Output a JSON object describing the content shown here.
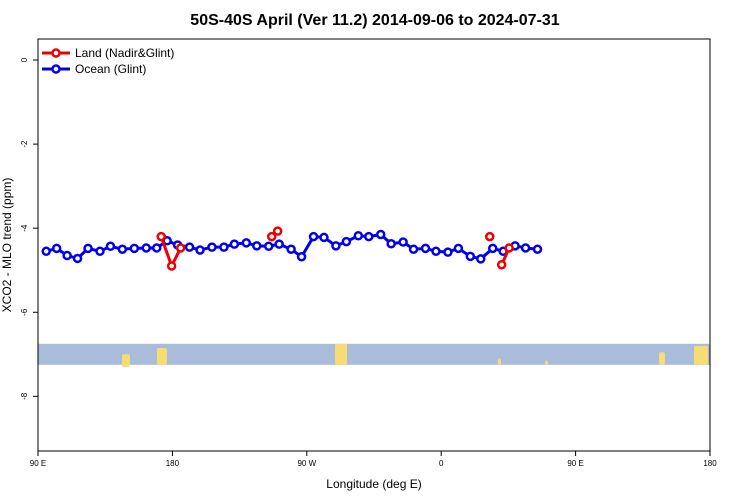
{
  "chart_data": {
    "type": "line",
    "title": "50S-40S April (Ver 11.2)   2014-09-06 to 2024-07-31",
    "xlabel": "Longitude (deg E)",
    "ylabel": "XCO2 - MLO trend (ppm)",
    "xlim": [
      90,
      450
    ],
    "ylim": [
      -9.3,
      0.5
    ],
    "x_ticks": [
      {
        "value": 90,
        "label": "90 E"
      },
      {
        "value": 180,
        "label": "180"
      },
      {
        "value": 270,
        "label": "90 W"
      },
      {
        "value": 360,
        "label": "0"
      },
      {
        "value": 450,
        "label": "90 E"
      },
      {
        "value": 540,
        "label": "180"
      }
    ],
    "y_ticks": [
      {
        "value": 0,
        "label": "0"
      },
      {
        "value": -2,
        "label": "-2"
      },
      {
        "value": -4,
        "label": "-4"
      },
      {
        "value": -6,
        "label": "-6"
      },
      {
        "value": -8,
        "label": "-8"
      }
    ],
    "grid": false,
    "legend_position": "top-left",
    "map_band": {
      "y_range": [
        -6.75,
        -7.25
      ],
      "ocean_color": "#a9bcd9",
      "land_color": "#f7dc74"
    },
    "series": [
      {
        "name": "Land (Nadir&Glint)",
        "color": "#ee0000",
        "x": [
          167.5,
          172.5,
          177.5,
          182.5,
          187.5,
          237.5,
          242.5,
          247.5,
          252.5,
          397.5,
          402.5,
          407.5
        ],
        "y": [
          -4.2,
          null,
          null,
          -4.9,
          -4.45,
          -4.2,
          -4.1,
          null,
          -4.05,
          -4.2,
          -4.85,
          -4.45
        ],
        "segments": [
          [
            177.5,
            182.5,
            187.5
          ],
          [
            402.5,
            407.5
          ]
        ]
      },
      {
        "name": "Ocean (Glint)",
        "color": "#0000ee",
        "x": [
          95,
          102.5,
          107.5,
          112.5,
          117.5,
          122.5,
          127.5,
          132.5,
          137.5,
          142.5,
          147.5,
          152.5,
          157.5,
          162.5,
          167.5,
          172.5,
          177.5,
          182.5,
          187.5,
          192.5,
          197.5,
          202.5,
          207.5,
          212.5,
          217.5,
          222.5,
          227.5,
          232.5,
          237.5,
          242.5,
          247.5,
          252.5,
          257.5,
          262.5,
          267.5,
          272.5,
          277.5,
          282.5,
          287.5,
          292.5,
          297.5,
          302.5,
          307.5,
          312.5,
          317.5,
          322.5,
          327.5,
          332.5,
          337.5,
          342.5,
          347.5,
          352.5,
          357.5,
          362.5,
          367.5,
          372.5,
          377.5,
          382.5,
          387.5,
          392.5,
          397.5,
          402.5,
          407.5,
          412.5,
          417.5,
          422.5,
          427.5,
          432.5,
          437.5,
          442.5,
          447.5
        ],
        "y": null,
        "points": [
          [
            95.5,
            -4.55
          ],
          [
            102.5,
            -4.48
          ],
          [
            109.5,
            -4.65
          ],
          [
            116.5,
            -4.72
          ],
          [
            123.5,
            -4.48
          ],
          [
            131.5,
            -4.55
          ],
          [
            138.5,
            -4.43
          ],
          [
            146.5,
            -4.5
          ],
          [
            154.5,
            -4.48
          ],
          [
            162.5,
            -4.47
          ],
          [
            169.5,
            -4.47
          ],
          [
            176.5,
            -4.3
          ],
          [
            183.5,
            -4.4
          ],
          [
            191.5,
            -4.45
          ],
          [
            198.5,
            -4.52
          ],
          [
            206.5,
            -4.45
          ],
          [
            214.5,
            -4.45
          ],
          [
            221.5,
            -4.38
          ],
          [
            229.5,
            -4.35
          ],
          [
            236.5,
            -4.42
          ],
          [
            244.5,
            -4.43
          ],
          [
            251.5,
            -4.38
          ],
          [
            259.5,
            -4.5
          ],
          [
            266.5,
            -4.68
          ],
          [
            274.5,
            -4.2
          ],
          [
            281.5,
            -4.22
          ],
          [
            289.5,
            -4.42
          ],
          [
            296.5,
            -4.32
          ],
          [
            304.5,
            -4.18
          ],
          [
            311.5,
            -4.2
          ],
          [
            319.5,
            -4.15
          ],
          [
            326.5,
            -4.37
          ],
          [
            334.5,
            -4.33
          ],
          [
            341.5,
            -4.5
          ],
          [
            349.5,
            -4.48
          ],
          [
            356.5,
            -4.55
          ],
          [
            364.5,
            -4.57
          ],
          [
            371.5,
            -4.48
          ],
          [
            379.5,
            -4.67
          ],
          [
            386.5,
            -4.73
          ],
          [
            394.5,
            -4.48
          ],
          [
            401.5,
            -4.55
          ],
          [
            409.5,
            -4.42
          ],
          [
            416.5,
            -4.47
          ],
          [
            424.5,
            -4.5
          ]
        ]
      }
    ],
    "land_series_points": [
      [
        172.5,
        -4.2
      ],
      [
        179.5,
        -4.9
      ],
      [
        185.5,
        -4.47
      ],
      [
        246.5,
        -4.2
      ],
      [
        250.5,
        -4.07
      ],
      [
        392.5,
        -4.2
      ],
      [
        400.5,
        -4.87
      ],
      [
        405.5,
        -4.47
      ]
    ]
  }
}
